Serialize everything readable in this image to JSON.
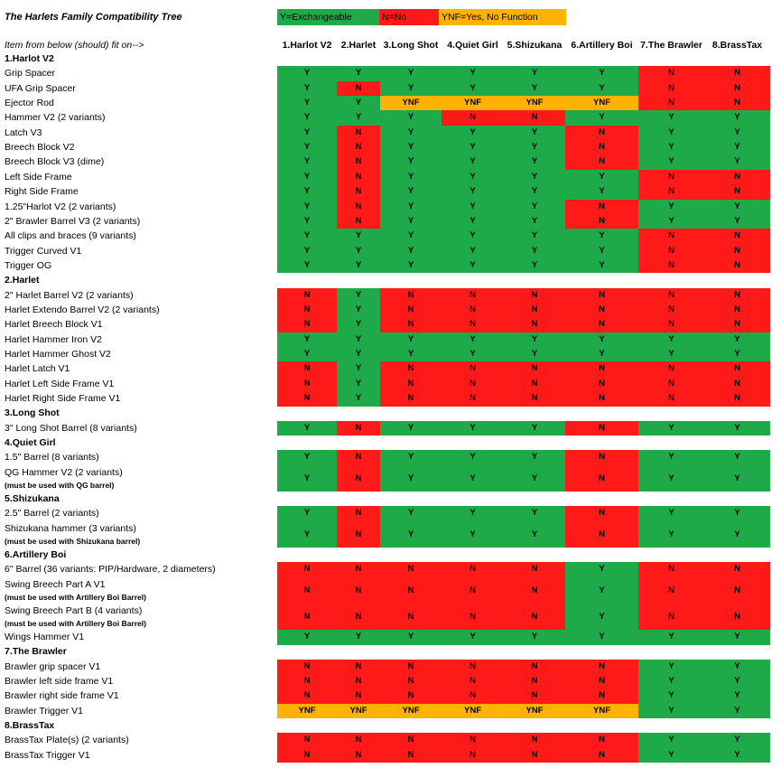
{
  "title": "The Harlets Family Compatibility Tree",
  "subheader": "Item from below (should) fit on-->",
  "legend": [
    {
      "code": "Y",
      "text": "Y=Exchangeable",
      "color": "#1faa4a"
    },
    {
      "code": "N",
      "text": "N=No",
      "color": "#ff1a1a"
    },
    {
      "code": "YNF",
      "text": "YNF=Yes, No Function",
      "color": "#ffb300"
    }
  ],
  "columns": [
    "1.Harlot V2",
    "2.Harlet",
    "3.Long Shot",
    "4.Quiet Girl",
    "5.Shizukana",
    "6.Artillery Boi",
    "7.The Brawler",
    "8.BrassTax"
  ],
  "rows": [
    {
      "type": "section",
      "label": "1.Harlot V2"
    },
    {
      "type": "item",
      "label": "Grip Spacer",
      "values": [
        "Y",
        "Y",
        "Y",
        "Y",
        "Y",
        "Y",
        "N",
        "N"
      ]
    },
    {
      "type": "item",
      "label": "UFA Grip Spacer",
      "values": [
        "Y",
        "N",
        "Y",
        "Y",
        "Y",
        "Y",
        "N",
        "N"
      ]
    },
    {
      "type": "item",
      "label": "Ejector Rod",
      "values": [
        "Y",
        "Y",
        "YNF",
        "YNF",
        "YNF",
        "YNF",
        "N",
        "N"
      ]
    },
    {
      "type": "item",
      "label": "Hammer V2 (2 variants)",
      "values": [
        "Y",
        "Y",
        "Y",
        "N",
        "N",
        "Y",
        "Y",
        "Y"
      ]
    },
    {
      "type": "item",
      "label": "Latch V3",
      "values": [
        "Y",
        "N",
        "Y",
        "Y",
        "Y",
        "N",
        "Y",
        "Y"
      ]
    },
    {
      "type": "item",
      "label": "Breech Block V2",
      "values": [
        "Y",
        "N",
        "Y",
        "Y",
        "Y",
        "N",
        "Y",
        "Y"
      ]
    },
    {
      "type": "item",
      "label": "Breech Block V3 (dime)",
      "values": [
        "Y",
        "N",
        "Y",
        "Y",
        "Y",
        "N",
        "Y",
        "Y"
      ]
    },
    {
      "type": "item",
      "label": "Left Side Frame",
      "values": [
        "Y",
        "N",
        "Y",
        "Y",
        "Y",
        "Y",
        "N",
        "N"
      ]
    },
    {
      "type": "item",
      "label": "Right Side Frame",
      "values": [
        "Y",
        "N",
        "Y",
        "Y",
        "Y",
        "Y",
        "N",
        "N"
      ]
    },
    {
      "type": "item",
      "label": "1.25\"Harlot V2 (2 variants)",
      "values": [
        "Y",
        "N",
        "Y",
        "Y",
        "Y",
        "N",
        "Y",
        "Y"
      ]
    },
    {
      "type": "item",
      "label": "2\" Brawler Barrel V3 (2 variants)",
      "values": [
        "Y",
        "N",
        "Y",
        "Y",
        "Y",
        "N",
        "Y",
        "Y"
      ]
    },
    {
      "type": "item",
      "label": "All clips and braces (9 variants)",
      "values": [
        "Y",
        "Y",
        "Y",
        "Y",
        "Y",
        "Y",
        "N",
        "N"
      ]
    },
    {
      "type": "item",
      "label": "Trigger Curved V1",
      "values": [
        "Y",
        "Y",
        "Y",
        "Y",
        "Y",
        "Y",
        "N",
        "N"
      ]
    },
    {
      "type": "item",
      "label": "Trigger OG",
      "values": [
        "Y",
        "Y",
        "Y",
        "Y",
        "Y",
        "Y",
        "N",
        "N"
      ]
    },
    {
      "type": "section",
      "label": "2.Harlet"
    },
    {
      "type": "item",
      "label": "2\" Harlet Barrel V2 (2 variants)",
      "values": [
        "N",
        "Y",
        "N",
        "N",
        "N",
        "N",
        "N",
        "N"
      ]
    },
    {
      "type": "item",
      "label": "Harlet Extendo Barrel V2 (2 variants)",
      "values": [
        "N",
        "Y",
        "N",
        "N",
        "N",
        "N",
        "N",
        "N"
      ]
    },
    {
      "type": "item",
      "label": "Harlet Breech Block V1",
      "values": [
        "N",
        "Y",
        "N",
        "N",
        "N",
        "N",
        "N",
        "N"
      ]
    },
    {
      "type": "item",
      "label": "Harlet Hammer Iron V2",
      "values": [
        "Y",
        "Y",
        "Y",
        "Y",
        "Y",
        "Y",
        "Y",
        "Y"
      ]
    },
    {
      "type": "item",
      "label": "Harlet Hammer Ghost V2",
      "values": [
        "Y",
        "Y",
        "Y",
        "Y",
        "Y",
        "Y",
        "Y",
        "Y"
      ]
    },
    {
      "type": "item",
      "label": "Harlet Latch V1",
      "values": [
        "N",
        "Y",
        "N",
        "N",
        "N",
        "N",
        "N",
        "N"
      ]
    },
    {
      "type": "item",
      "label": "Harlet Left Side Frame V1",
      "values": [
        "N",
        "Y",
        "N",
        "N",
        "N",
        "N",
        "N",
        "N"
      ]
    },
    {
      "type": "item",
      "label": "Harlet Right Side Frame V1",
      "values": [
        "N",
        "Y",
        "N",
        "N",
        "N",
        "N",
        "N",
        "N"
      ]
    },
    {
      "type": "section",
      "label": "3.Long Shot"
    },
    {
      "type": "item",
      "label": "3\" Long Shot Barrel (8 variants)",
      "values": [
        "Y",
        "N",
        "Y",
        "Y",
        "Y",
        "N",
        "Y",
        "Y"
      ]
    },
    {
      "type": "section",
      "label": "4.Quiet Girl"
    },
    {
      "type": "item",
      "label": "1.5\" Barrel (8 variants)",
      "values": [
        "Y",
        "N",
        "Y",
        "Y",
        "Y",
        "N",
        "Y",
        "Y"
      ]
    },
    {
      "type": "item",
      "label": "QG Hammer V2 (2 variants)",
      "note": "(must be used with QG barrel)",
      "values": [
        "Y",
        "N",
        "Y",
        "Y",
        "Y",
        "N",
        "Y",
        "Y"
      ]
    },
    {
      "type": "section",
      "label": "5.Shizukana"
    },
    {
      "type": "item",
      "label": "2.5\" Barrel (2 variants)",
      "values": [
        "Y",
        "N",
        "Y",
        "Y",
        "Y",
        "N",
        "Y",
        "Y"
      ]
    },
    {
      "type": "item",
      "label": "Shizukana hammer (3 variants)",
      "note": "(must be used with Shizukana barrel)",
      "values": [
        "Y",
        "N",
        "Y",
        "Y",
        "Y",
        "N",
        "Y",
        "Y"
      ]
    },
    {
      "type": "section",
      "label": "6.Artillery Boi"
    },
    {
      "type": "item",
      "label": "6\" Barrel (36 variants: PIP/Hardware, 2 diameters)",
      "values": [
        "N",
        "N",
        "N",
        "N",
        "N",
        "Y",
        "N",
        "N"
      ]
    },
    {
      "type": "item",
      "label": "Swing Breech Part A V1",
      "note": "(must be used with Artillery Boi Barrel)",
      "values": [
        "N",
        "N",
        "N",
        "N",
        "N",
        "Y",
        "N",
        "N"
      ]
    },
    {
      "type": "item",
      "label": "Swing Breech Part B (4 variants)",
      "note": "(must be used with Artillery Boi Barrel)",
      "values": [
        "N",
        "N",
        "N",
        "N",
        "N",
        "Y",
        "N",
        "N"
      ]
    },
    {
      "type": "item",
      "label": "Wings Hammer V1",
      "values": [
        "Y",
        "Y",
        "Y",
        "Y",
        "Y",
        "Y",
        "Y",
        "Y"
      ]
    },
    {
      "type": "section",
      "label": "7.The Brawler"
    },
    {
      "type": "item",
      "label": "Brawler grip spacer V1",
      "values": [
        "N",
        "N",
        "N",
        "N",
        "N",
        "N",
        "Y",
        "Y"
      ]
    },
    {
      "type": "item",
      "label": "Brawler left side frame V1",
      "values": [
        "N",
        "N",
        "N",
        "N",
        "N",
        "N",
        "Y",
        "Y"
      ]
    },
    {
      "type": "item",
      "label": "Brawler right side frame V1",
      "values": [
        "N",
        "N",
        "N",
        "N",
        "N",
        "N",
        "Y",
        "Y"
      ]
    },
    {
      "type": "item",
      "label": "Brawler Trigger V1",
      "values": [
        "YNF",
        "YNF",
        "YNF",
        "YNF",
        "YNF",
        "YNF",
        "Y",
        "Y"
      ]
    },
    {
      "type": "section",
      "label": "8.BrassTax"
    },
    {
      "type": "item",
      "label": "BrassTax Plate(s) (2 variants)",
      "values": [
        "N",
        "N",
        "N",
        "N",
        "N",
        "N",
        "Y",
        "Y"
      ]
    },
    {
      "type": "item",
      "label": "BrassTax Trigger V1",
      "values": [
        "N",
        "N",
        "N",
        "N",
        "N",
        "N",
        "Y",
        "Y"
      ]
    }
  ]
}
